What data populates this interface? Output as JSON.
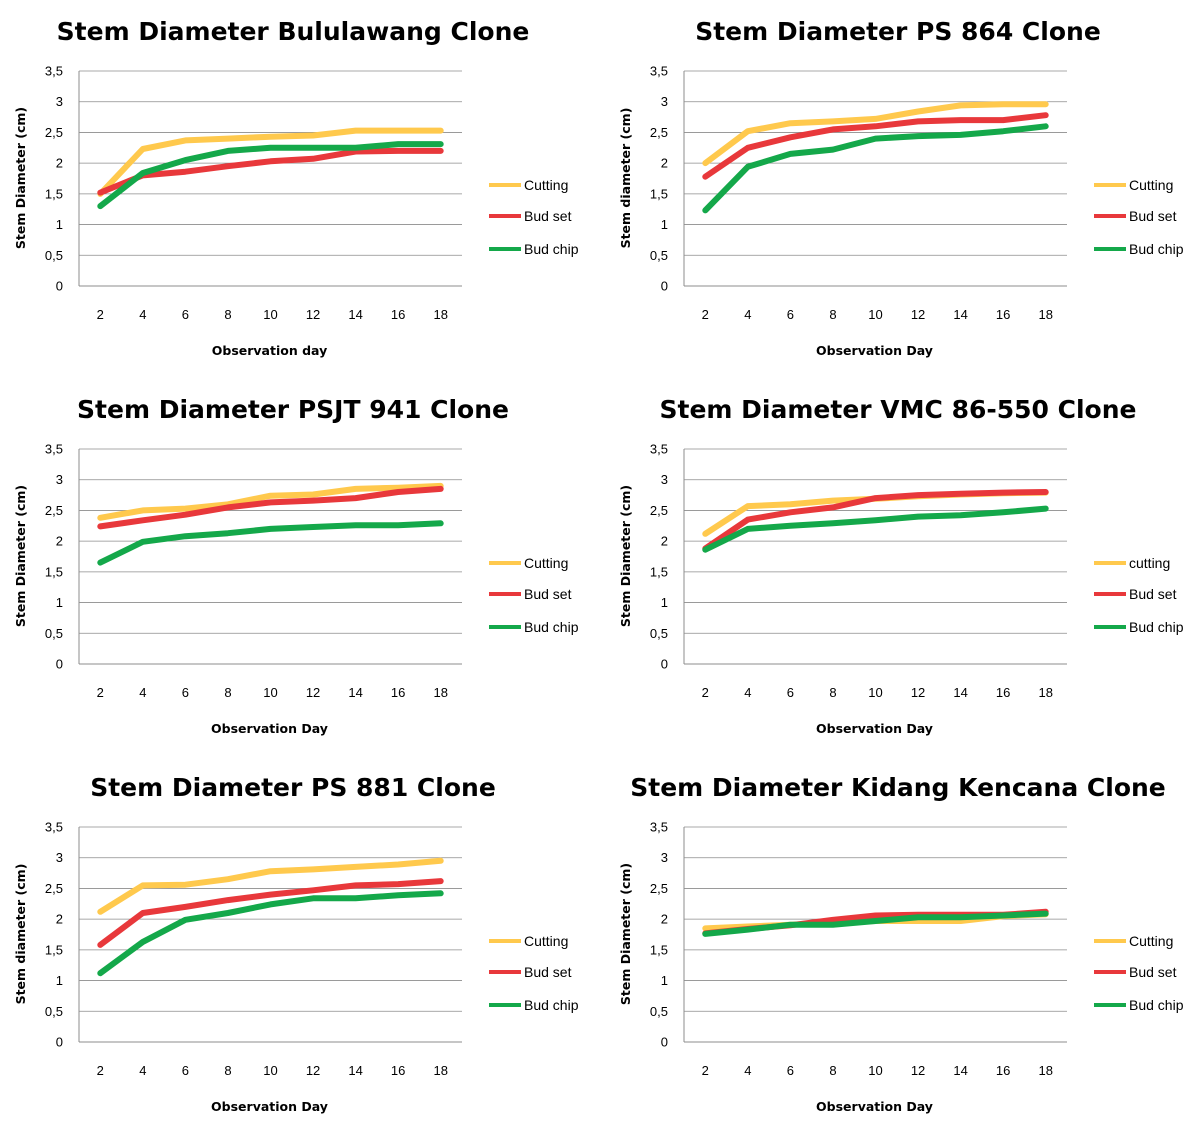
{
  "chart_data": [
    {
      "type": "line",
      "title": "Stem Diameter Bululawang Clone",
      "xlabel": "Observation day",
      "ylabel": "Stem Diameter (cm)",
      "ylim": [
        0,
        3.5
      ],
      "yticks": [
        "0",
        "0,5",
        "1",
        "1,5",
        "2",
        "2,5",
        "3",
        "3,5"
      ],
      "categories": [
        "2",
        "4",
        "6",
        "8",
        "10",
        "12",
        "14",
        "16",
        "18"
      ],
      "legend_position": "right",
      "grid": true,
      "series": [
        {
          "name": "Cutting",
          "color": "#FFC94D",
          "values": [
            1.5,
            2.23,
            2.37,
            2.4,
            2.43,
            2.45,
            2.53,
            2.53,
            2.53
          ]
        },
        {
          "name": "Bud set",
          "color": "#E8383B",
          "values": [
            1.52,
            1.8,
            1.86,
            1.95,
            2.03,
            2.07,
            2.19,
            2.2,
            2.2
          ]
        },
        {
          "name": "Bud chip",
          "color": "#14A84A",
          "values": [
            1.3,
            1.84,
            2.05,
            2.2,
            2.25,
            2.25,
            2.25,
            2.31,
            2.31
          ]
        }
      ]
    },
    {
      "type": "line",
      "title": "Stem Diameter PS 864 Clone",
      "xlabel": "Observation Day",
      "ylabel": "Stem diameter (cm)",
      "ylim": [
        0,
        3.5
      ],
      "yticks": [
        "0",
        "0,5",
        "1",
        "1,5",
        "2",
        "2,5",
        "3",
        "3,5"
      ],
      "categories": [
        "2",
        "4",
        "6",
        "8",
        "10",
        "12",
        "14",
        "16",
        "18"
      ],
      "legend_position": "right",
      "grid": true,
      "series": [
        {
          "name": "Cutting",
          "color": "#FFC94D",
          "values": [
            2.0,
            2.52,
            2.65,
            2.68,
            2.72,
            2.84,
            2.94,
            2.96,
            2.96
          ]
        },
        {
          "name": "Bud set",
          "color": "#E8383B",
          "values": [
            1.78,
            2.25,
            2.42,
            2.55,
            2.6,
            2.68,
            2.7,
            2.7,
            2.78
          ]
        },
        {
          "name": "Bud chip",
          "color": "#14A84A",
          "values": [
            1.23,
            1.94,
            2.15,
            2.22,
            2.4,
            2.44,
            2.46,
            2.52,
            2.6
          ]
        }
      ]
    },
    {
      "type": "line",
      "title": "Stem Diameter PSJT 941 Clone",
      "xlabel": "Observation Day",
      "ylabel": "Stem Diameter (cm)",
      "ylim": [
        0,
        3.5
      ],
      "yticks": [
        "0",
        "0,5",
        "1",
        "1,5",
        "2",
        "2,5",
        "3",
        "3,5"
      ],
      "categories": [
        "2",
        "4",
        "6",
        "8",
        "10",
        "12",
        "14",
        "16",
        "18"
      ],
      "legend_position": "right",
      "grid": true,
      "series": [
        {
          "name": "Cutting",
          "color": "#FFC94D",
          "values": [
            2.38,
            2.5,
            2.53,
            2.6,
            2.74,
            2.76,
            2.85,
            2.87,
            2.9
          ]
        },
        {
          "name": "Bud set",
          "color": "#E8383B",
          "values": [
            2.24,
            2.34,
            2.43,
            2.55,
            2.63,
            2.66,
            2.7,
            2.8,
            2.85
          ]
        },
        {
          "name": "Bud chip",
          "color": "#14A84A",
          "values": [
            1.65,
            1.99,
            2.08,
            2.13,
            2.2,
            2.23,
            2.26,
            2.26,
            2.29
          ]
        }
      ]
    },
    {
      "type": "line",
      "title": "Stem Diameter VMC 86-550 Clone",
      "xlabel": "Observation Day",
      "ylabel": "Stem Diameter (cm)",
      "ylim": [
        0,
        3.5
      ],
      "yticks": [
        "0",
        "0,5",
        "1",
        "1,5",
        "2",
        "2,5",
        "3",
        "3,5"
      ],
      "categories": [
        "2",
        "4",
        "6",
        "8",
        "10",
        "12",
        "14",
        "16",
        "18"
      ],
      "legend_position": "right",
      "grid": true,
      "series": [
        {
          "name": "cutting",
          "color": "#FFC94D",
          "values": [
            2.12,
            2.57,
            2.6,
            2.66,
            2.69,
            2.73,
            2.76,
            2.78,
            2.79
          ]
        },
        {
          "name": "Bud set",
          "color": "#E8383B",
          "values": [
            1.88,
            2.35,
            2.47,
            2.55,
            2.7,
            2.75,
            2.77,
            2.79,
            2.8
          ]
        },
        {
          "name": "Bud chip",
          "color": "#14A84A",
          "values": [
            1.86,
            2.2,
            2.25,
            2.29,
            2.34,
            2.4,
            2.42,
            2.47,
            2.53
          ]
        }
      ]
    },
    {
      "type": "line",
      "title": "Stem Diameter PS 881 Clone",
      "xlabel": "Observation Day",
      "ylabel": "Stem diameter (cm)",
      "ylim": [
        0,
        3.5
      ],
      "yticks": [
        "0",
        "0,5",
        "1",
        "1,5",
        "2",
        "2,5",
        "3",
        "3,5"
      ],
      "categories": [
        "2",
        "4",
        "6",
        "8",
        "10",
        "12",
        "14",
        "16",
        "18"
      ],
      "legend_position": "right",
      "grid": true,
      "series": [
        {
          "name": "Cutting",
          "color": "#FFC94D",
          "values": [
            2.12,
            2.55,
            2.56,
            2.65,
            2.78,
            2.81,
            2.85,
            2.89,
            2.95
          ]
        },
        {
          "name": "Bud set",
          "color": "#E8383B",
          "values": [
            1.58,
            2.1,
            2.2,
            2.31,
            2.4,
            2.47,
            2.55,
            2.57,
            2.62
          ]
        },
        {
          "name": "Bud chip",
          "color": "#14A84A",
          "values": [
            1.12,
            1.63,
            1.99,
            2.1,
            2.24,
            2.34,
            2.34,
            2.39,
            2.42
          ]
        }
      ]
    },
    {
      "type": "line",
      "title": "Stem Diameter Kidang Kencana Clone",
      "xlabel": "Observation Day",
      "ylabel": "Stem Diameter (cm)",
      "ylim": [
        0,
        3.5
      ],
      "yticks": [
        "0",
        "0,5",
        "1",
        "1,5",
        "2",
        "2,5",
        "3",
        "3,5"
      ],
      "categories": [
        "2",
        "4",
        "6",
        "8",
        "10",
        "12",
        "14",
        "16",
        "18"
      ],
      "legend_position": "right",
      "grid": true,
      "series": [
        {
          "name": "Cutting",
          "color": "#FFC94D",
          "values": [
            1.85,
            1.88,
            1.91,
            1.94,
            1.97,
            1.97,
            1.97,
            2.05,
            2.08
          ]
        },
        {
          "name": "Bud set",
          "color": "#E8383B",
          "values": [
            1.77,
            1.84,
            1.9,
            1.99,
            2.06,
            2.07,
            2.07,
            2.07,
            2.12
          ]
        },
        {
          "name": "Bud chip",
          "color": "#14A84A",
          "values": [
            1.76,
            1.83,
            1.91,
            1.91,
            1.97,
            2.03,
            2.03,
            2.06,
            2.09
          ]
        }
      ]
    }
  ]
}
